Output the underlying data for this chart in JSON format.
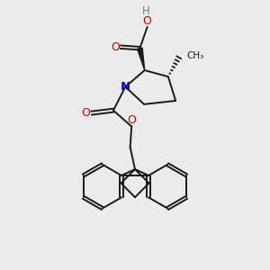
{
  "background_color": "#ebebeb",
  "bond_color": "#1a1a1a",
  "atom_colors": {
    "O": "#cc0000",
    "N": "#0000cc",
    "H": "#4a9090",
    "C": "#1a1a1a"
  }
}
